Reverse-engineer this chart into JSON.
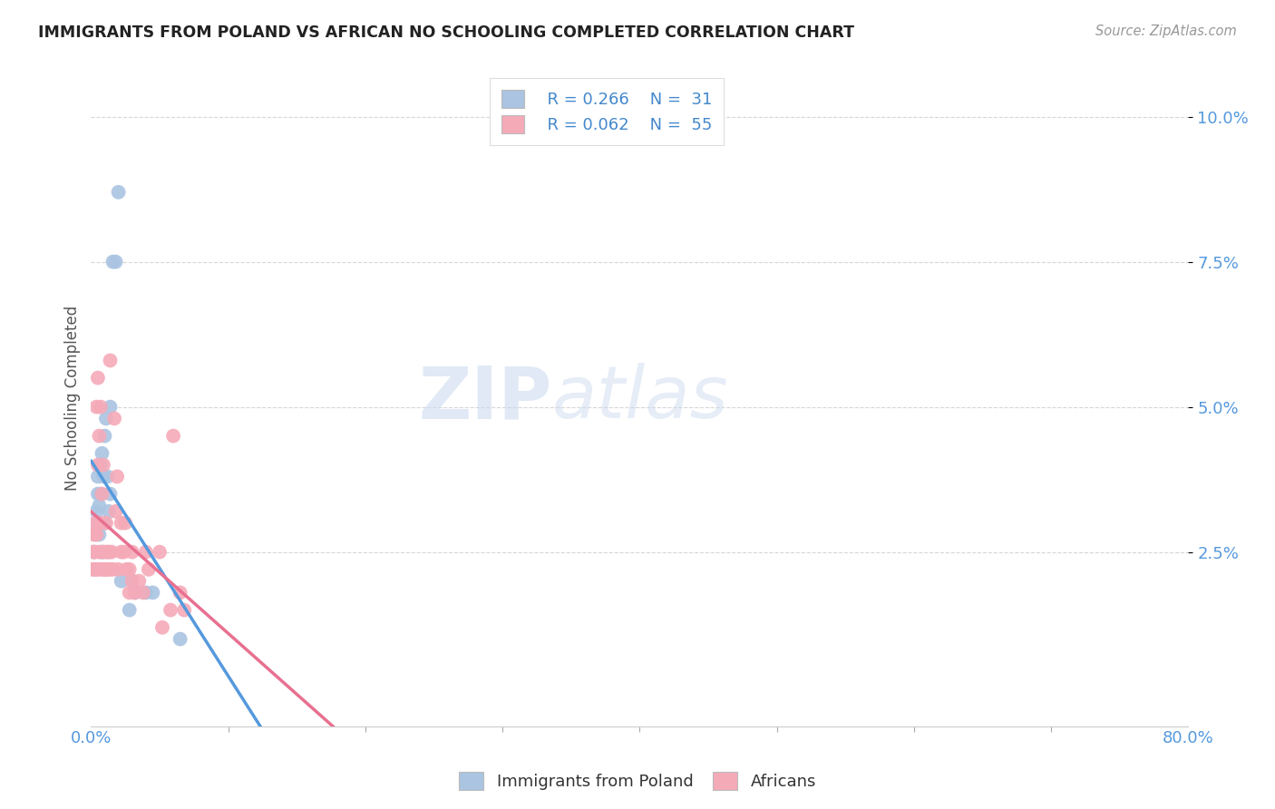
{
  "title": "IMMIGRANTS FROM POLAND VS AFRICAN NO SCHOOLING COMPLETED CORRELATION CHART",
  "source": "Source: ZipAtlas.com",
  "ylabel": "No Schooling Completed",
  "legend_r1": "R = 0.266",
  "legend_n1": "N =  31",
  "legend_r2": "R = 0.062",
  "legend_n2": "N =  55",
  "legend_label1": "Immigrants from Poland",
  "legend_label2": "Africans",
  "blue_color": "#aac4e2",
  "pink_color": "#f5aab8",
  "blue_line_color": "#5599dd",
  "pink_line_color": "#e87090",
  "blue_scatter": [
    [
      0.002,
      0.025
    ],
    [
      0.003,
      0.022
    ],
    [
      0.004,
      0.028
    ],
    [
      0.004,
      0.032
    ],
    [
      0.005,
      0.03
    ],
    [
      0.005,
      0.035
    ],
    [
      0.005,
      0.038
    ],
    [
      0.006,
      0.033
    ],
    [
      0.006,
      0.028
    ],
    [
      0.007,
      0.04
    ],
    [
      0.007,
      0.035
    ],
    [
      0.008,
      0.042
    ],
    [
      0.008,
      0.025
    ],
    [
      0.009,
      0.038
    ],
    [
      0.01,
      0.03
    ],
    [
      0.01,
      0.045
    ],
    [
      0.011,
      0.048
    ],
    [
      0.012,
      0.038
    ],
    [
      0.013,
      0.032
    ],
    [
      0.014,
      0.035
    ],
    [
      0.014,
      0.05
    ],
    [
      0.016,
      0.075
    ],
    [
      0.018,
      0.075
    ],
    [
      0.02,
      0.087
    ],
    [
      0.022,
      0.02
    ],
    [
      0.028,
      0.015
    ],
    [
      0.03,
      0.02
    ],
    [
      0.032,
      0.018
    ],
    [
      0.04,
      0.018
    ],
    [
      0.045,
      0.018
    ],
    [
      0.065,
      0.01
    ]
  ],
  "pink_scatter": [
    [
      0.001,
      0.022
    ],
    [
      0.002,
      0.025
    ],
    [
      0.002,
      0.028
    ],
    [
      0.003,
      0.022
    ],
    [
      0.003,
      0.03
    ],
    [
      0.003,
      0.025
    ],
    [
      0.004,
      0.028
    ],
    [
      0.004,
      0.05
    ],
    [
      0.005,
      0.022
    ],
    [
      0.005,
      0.04
    ],
    [
      0.005,
      0.055
    ],
    [
      0.006,
      0.025
    ],
    [
      0.006,
      0.045
    ],
    [
      0.007,
      0.03
    ],
    [
      0.007,
      0.05
    ],
    [
      0.007,
      0.022
    ],
    [
      0.008,
      0.025
    ],
    [
      0.008,
      0.035
    ],
    [
      0.009,
      0.022
    ],
    [
      0.009,
      0.04
    ],
    [
      0.01,
      0.025
    ],
    [
      0.01,
      0.022
    ],
    [
      0.011,
      0.022
    ],
    [
      0.011,
      0.03
    ],
    [
      0.012,
      0.025
    ],
    [
      0.012,
      0.022
    ],
    [
      0.013,
      0.025
    ],
    [
      0.014,
      0.058
    ],
    [
      0.014,
      0.022
    ],
    [
      0.015,
      0.025
    ],
    [
      0.016,
      0.022
    ],
    [
      0.017,
      0.048
    ],
    [
      0.018,
      0.032
    ],
    [
      0.019,
      0.038
    ],
    [
      0.02,
      0.022
    ],
    [
      0.022,
      0.03
    ],
    [
      0.022,
      0.025
    ],
    [
      0.024,
      0.025
    ],
    [
      0.025,
      0.03
    ],
    [
      0.026,
      0.022
    ],
    [
      0.028,
      0.022
    ],
    [
      0.028,
      0.018
    ],
    [
      0.03,
      0.02
    ],
    [
      0.03,
      0.025
    ],
    [
      0.032,
      0.018
    ],
    [
      0.035,
      0.02
    ],
    [
      0.038,
      0.018
    ],
    [
      0.04,
      0.025
    ],
    [
      0.042,
      0.022
    ],
    [
      0.05,
      0.025
    ],
    [
      0.052,
      0.012
    ],
    [
      0.058,
      0.015
    ],
    [
      0.06,
      0.045
    ],
    [
      0.065,
      0.018
    ],
    [
      0.068,
      0.015
    ]
  ],
  "watermark_zip": "ZIP",
  "watermark_atlas": "atlas",
  "grid_color": "#cccccc",
  "background_color": "#ffffff",
  "xlim": [
    0.0,
    0.8
  ],
  "ylim": [
    -0.005,
    0.108
  ],
  "ytick_vals": [
    0.025,
    0.05,
    0.075,
    0.1
  ],
  "ytick_labels": [
    "2.5%",
    "5.0%",
    "7.5%",
    "10.0%"
  ],
  "xtick_minor_step": 0.1
}
